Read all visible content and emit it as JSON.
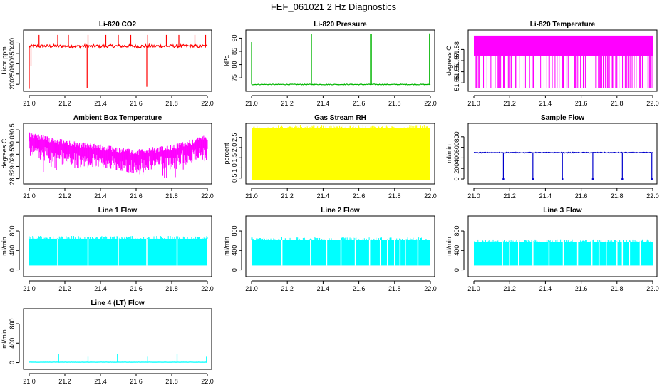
{
  "figure": {
    "title": "FEF_061021  2 Hz Diagnostics"
  },
  "chart_data": [
    {
      "type": "line",
      "title": "Li-820 CO2",
      "ylabel": "Licor ppm",
      "color": "#ff0000",
      "xlim": [
        21.0,
        22.0
      ],
      "ylim": [
        180,
        450
      ],
      "x_ticks": [
        "21.0",
        "21.2",
        "21.4",
        "21.6",
        "21.8",
        "22.0"
      ],
      "y_ticks": [
        200,
        250,
        300,
        350,
        400
      ],
      "y_tick_labels": [
        "200",
        "250",
        "300",
        "350",
        "400"
      ],
      "series": [
        {
          "base": 385,
          "noise": 8,
          "spikes": [
            {
              "x": 21.0,
              "y": 178
            },
            {
              "x": 21.01,
              "y": 290
            },
            {
              "x": 21.055,
              "y": 440
            },
            {
              "x": 21.16,
              "y": 440
            },
            {
              "x": 21.22,
              "y": 440
            },
            {
              "x": 21.33,
              "y": 440
            },
            {
              "x": 21.325,
              "y": 180
            },
            {
              "x": 21.43,
              "y": 440
            },
            {
              "x": 21.5,
              "y": 440
            },
            {
              "x": 21.57,
              "y": 440
            },
            {
              "x": 21.665,
              "y": 440
            },
            {
              "x": 21.66,
              "y": 188
            },
            {
              "x": 21.77,
              "y": 440
            },
            {
              "x": 21.84,
              "y": 440
            },
            {
              "x": 21.93,
              "y": 440
            },
            {
              "x": 21.99,
              "y": 440
            }
          ]
        }
      ]
    },
    {
      "type": "line",
      "title": "Li-820 Pressure",
      "ylabel": "kPa",
      "color": "#00b400",
      "xlim": [
        21.0,
        22.0
      ],
      "ylim": [
        71,
        92
      ],
      "x_ticks": [
        "21.0",
        "21.2",
        "21.4",
        "21.6",
        "21.8",
        "22.0"
      ],
      "y_ticks": [
        75,
        80,
        85,
        90
      ],
      "y_tick_labels": [
        "75",
        "80",
        "85",
        "90"
      ],
      "series": [
        {
          "base": 72.5,
          "noise": 0.15,
          "spikes": [
            {
              "x": 21.0,
              "y": 88.5
            },
            {
              "x": 21.335,
              "y": 91.5
            },
            {
              "x": 21.665,
              "y": 91.5
            },
            {
              "x": 21.67,
              "y": 91.5
            },
            {
              "x": 21.995,
              "y": 91.8
            }
          ]
        }
      ]
    },
    {
      "type": "line",
      "title": "Li-820 Temperature",
      "ylabel": "degrees C",
      "color": "#ff00ff",
      "xlim": [
        21.0,
        22.0
      ],
      "ylim": [
        51.545,
        51.595
      ],
      "x_ticks": [
        "21.0",
        "21.2",
        "21.4",
        "21.6",
        "21.8",
        "22.0"
      ],
      "y_ticks": [
        51.55,
        51.56,
        51.57,
        51.58
      ],
      "y_tick_labels": [
        "51.55",
        "51.56",
        "51.57",
        "51.58"
      ],
      "series": [
        {
          "band": [
            51.5745,
            51.5925
          ],
          "low": 51.5455
        }
      ]
    },
    {
      "type": "line",
      "title": "Ambient Box Temperature",
      "ylabel": "degrees C",
      "color": "#ff00ff",
      "xlim": [
        21.0,
        22.0
      ],
      "ylim": [
        28.4,
        30.65
      ],
      "x_ticks": [
        "21.0",
        "21.2",
        "21.4",
        "21.6",
        "21.8",
        "22.0"
      ],
      "y_ticks": [
        28.5,
        29.0,
        29.5,
        30.0,
        30.5
      ],
      "y_tick_labels": [
        "28.5",
        "29.0",
        "29.5",
        "30.0",
        "30.5"
      ],
      "series": [
        {
          "upper": [
            30.4,
            30.1,
            29.9,
            29.7,
            29.9,
            30.3
          ],
          "lower": [
            28.7,
            28.9,
            29.0,
            28.7,
            28.5,
            29.1
          ]
        }
      ]
    },
    {
      "type": "line",
      "title": "Gas Stream RH",
      "ylabel": "percent",
      "color": "#ffff00",
      "xlim": [
        21.0,
        22.0
      ],
      "ylim": [
        0.35,
        3.05
      ],
      "x_ticks": [
        "21.0",
        "21.2",
        "21.4",
        "21.6",
        "21.8",
        "22.0"
      ],
      "y_ticks": [
        0.5,
        1.0,
        1.5,
        2.0,
        2.5
      ],
      "y_tick_labels": [
        "0.5",
        "1.0",
        "1.5",
        "2.0",
        "2.5"
      ],
      "series": [
        {
          "band": [
            0.4,
            2.95
          ]
        }
      ]
    },
    {
      "type": "line",
      "title": "Sample Flow",
      "ylabel": "ml/min",
      "color": "#0000cc",
      "xlim": [
        21.0,
        22.0
      ],
      "ylim": [
        -40,
        1000
      ],
      "x_ticks": [
        "21.0",
        "21.2",
        "21.4",
        "21.6",
        "21.8",
        "22.0"
      ],
      "y_ticks": [
        0,
        200,
        400,
        600,
        800
      ],
      "y_tick_labels": [
        "0",
        "200",
        "400",
        "600",
        "800"
      ],
      "series": [
        {
          "base": 500,
          "noise": 8,
          "dips": [
            21.165,
            21.33,
            21.495,
            21.665,
            21.83,
            21.995
          ]
        }
      ]
    },
    {
      "type": "line",
      "title": "Line 1 Flow",
      "ylabel": "ml/min",
      "color": "#00ffff",
      "xlim": [
        21.0,
        22.0
      ],
      "ylim": [
        -80,
        1050
      ],
      "x_ticks": [
        "21.0",
        "21.2",
        "21.4",
        "21.6",
        "21.8",
        "22.0"
      ],
      "y_ticks": [
        0,
        400,
        800
      ],
      "y_tick_labels": [
        "0",
        "400",
        "800"
      ],
      "series": [
        {
          "band": [
            90,
            640
          ],
          "gaps": [
            21.16,
            21.33,
            21.5,
            21.66,
            21.83
          ]
        }
      ]
    },
    {
      "type": "line",
      "title": "Line 2 Flow",
      "ylabel": "ml/min",
      "color": "#00ffff",
      "xlim": [
        21.0,
        22.0
      ],
      "ylim": [
        -80,
        1050
      ],
      "x_ticks": [
        "21.0",
        "21.2",
        "21.4",
        "21.6",
        "21.8",
        "22.0"
      ],
      "y_ticks": [
        0,
        400,
        800
      ],
      "y_tick_labels": [
        "0",
        "400",
        "800"
      ],
      "series": [
        {
          "band": [
            90,
            610
          ],
          "gaps": [
            21.17,
            21.33,
            21.42,
            21.5,
            21.58,
            21.66,
            21.72,
            21.76,
            21.8,
            21.83,
            21.86,
            21.93
          ]
        }
      ]
    },
    {
      "type": "line",
      "title": "Line 3 Flow",
      "ylabel": "ml/min",
      "color": "#00ffff",
      "xlim": [
        21.0,
        22.0
      ],
      "ylim": [
        -80,
        1050
      ],
      "x_ticks": [
        "21.0",
        "21.2",
        "21.4",
        "21.6",
        "21.8",
        "22.0"
      ],
      "y_ticks": [
        0,
        400,
        800
      ],
      "y_tick_labels": [
        "0",
        "400",
        "800"
      ],
      "series": [
        {
          "band": [
            90,
            570
          ],
          "gaps": [
            21.16,
            21.2,
            21.25,
            21.33,
            21.42,
            21.5,
            21.58,
            21.66,
            21.7,
            21.74,
            21.8,
            21.83,
            21.87,
            21.93
          ]
        }
      ]
    },
    {
      "type": "line",
      "title": "Line 4 (LT) Flow",
      "ylabel": "ml/min",
      "color": "#00ffff",
      "xlim": [
        21.0,
        22.0
      ],
      "ylim": [
        -80,
        1050
      ],
      "x_ticks": [
        "21.0",
        "21.2",
        "21.4",
        "21.6",
        "21.8",
        "22.0"
      ],
      "y_ticks": [
        0,
        400,
        800
      ],
      "y_tick_labels": [
        "0",
        "400",
        "800"
      ],
      "series": [
        {
          "base": 8,
          "noise": 2,
          "spikes": [
            {
              "x": 21.165,
              "y": 170
            },
            {
              "x": 21.33,
              "y": 120
            },
            {
              "x": 21.495,
              "y": 170
            },
            {
              "x": 21.665,
              "y": 120
            },
            {
              "x": 21.83,
              "y": 170
            },
            {
              "x": 21.995,
              "y": 120
            }
          ]
        }
      ]
    }
  ]
}
